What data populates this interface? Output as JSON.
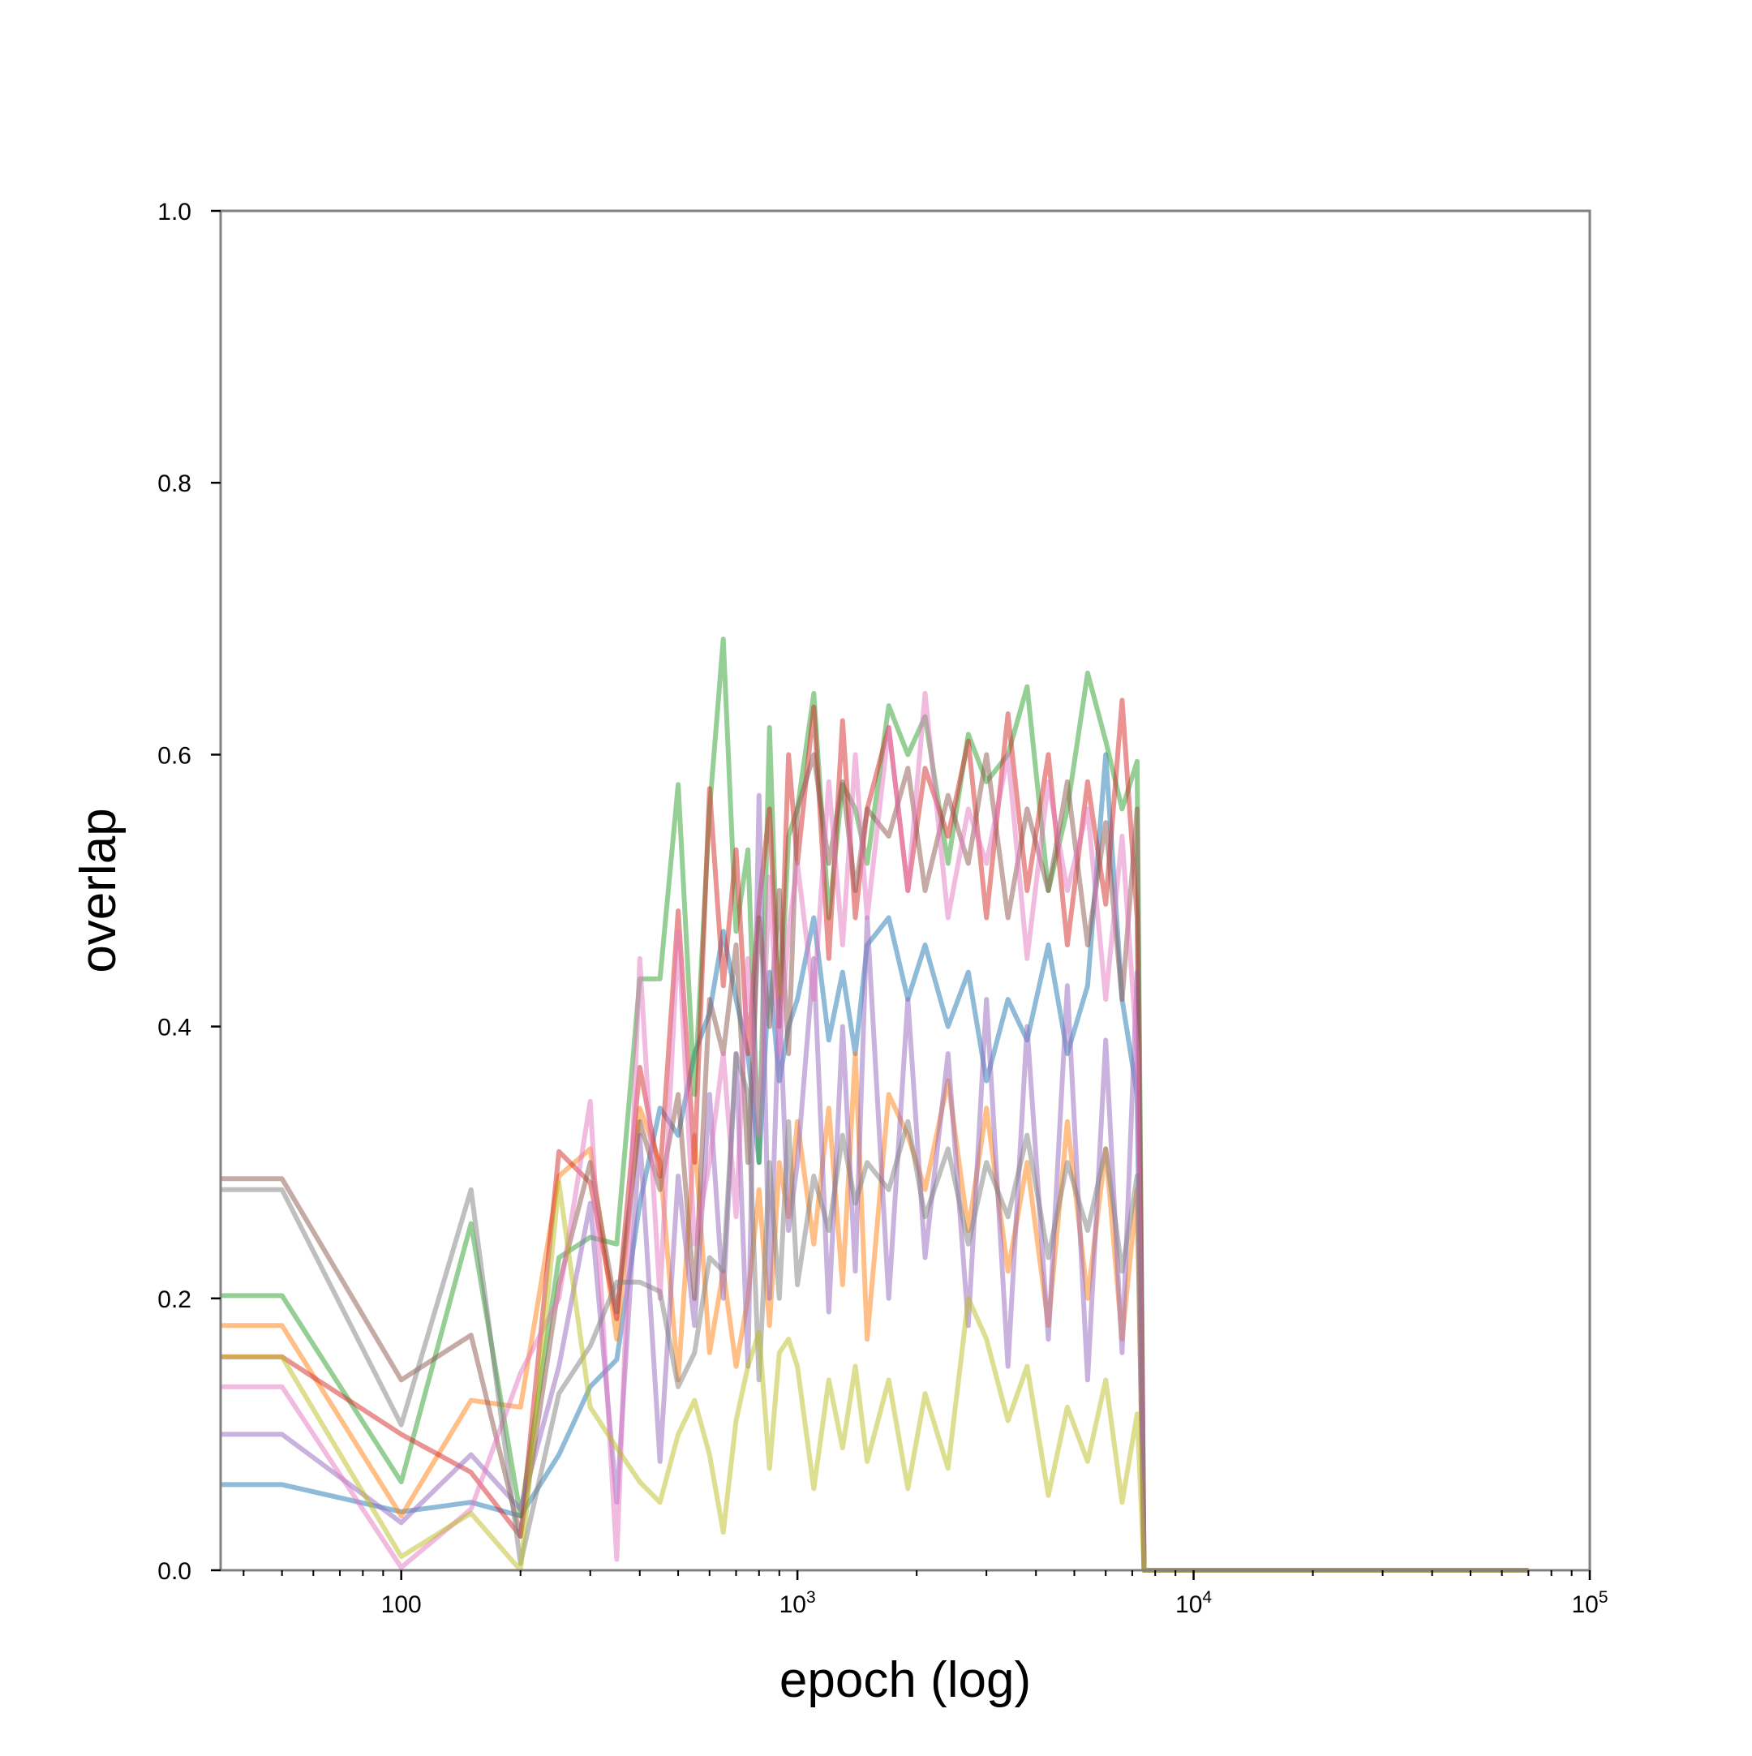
{
  "chart_data": {
    "type": "line",
    "title": "",
    "xlabel": "epoch (log)",
    "ylabel": "overlap",
    "xscale": "log",
    "xlim": [
      35,
      100000
    ],
    "ylim": [
      0,
      1.0
    ],
    "grid": false,
    "legend": "none",
    "x_ticks": [
      {
        "value": 100,
        "base": "100",
        "exp": ""
      },
      {
        "value": 1000,
        "base": "10",
        "exp": "3"
      },
      {
        "value": 10000,
        "base": "10",
        "exp": "4"
      },
      {
        "value": 100000,
        "base": "10",
        "exp": "5"
      }
    ],
    "y_ticks": [
      {
        "value": 0.0,
        "label": "0.0"
      },
      {
        "value": 0.2,
        "label": "0.2"
      },
      {
        "value": 0.4,
        "label": "0.4"
      },
      {
        "value": 0.6,
        "label": "0.6"
      },
      {
        "value": 0.8,
        "label": "0.8"
      },
      {
        "value": 1.0,
        "label": "1.0"
      }
    ],
    "series": [
      {
        "color": "#1f77b4",
        "x": [
          35,
          50,
          100,
          150,
          200,
          250,
          300,
          350,
          400,
          450,
          500,
          550,
          600,
          650,
          700,
          750,
          800,
          850,
          900,
          950,
          1000,
          1100,
          1200,
          1300,
          1400,
          1500,
          1700,
          1900,
          2100,
          2400,
          2700,
          3000,
          3400,
          3800,
          4300,
          4800,
          5400,
          6000,
          6600,
          7200,
          7500,
          8000,
          10000,
          20000,
          50000,
          70000
        ],
        "values": [
          0.063,
          0.063,
          0.043,
          0.05,
          0.04,
          0.085,
          0.135,
          0.155,
          0.27,
          0.34,
          0.32,
          0.38,
          0.41,
          0.47,
          0.42,
          0.38,
          0.3,
          0.44,
          0.36,
          0.4,
          0.42,
          0.48,
          0.39,
          0.44,
          0.38,
          0.46,
          0.48,
          0.42,
          0.46,
          0.4,
          0.44,
          0.36,
          0.42,
          0.39,
          0.46,
          0.38,
          0.43,
          0.6,
          0.42,
          0.35,
          0.0,
          0.0,
          0.0,
          0.0,
          0.0,
          0.0
        ]
      },
      {
        "color": "#ff7f0e",
        "x": [
          35,
          50,
          100,
          150,
          200,
          250,
          300,
          350,
          400,
          450,
          500,
          550,
          600,
          650,
          700,
          750,
          800,
          850,
          900,
          950,
          1000,
          1100,
          1200,
          1300,
          1400,
          1500,
          1700,
          1900,
          2100,
          2400,
          2700,
          3000,
          3400,
          3800,
          4300,
          4800,
          5400,
          6000,
          6600,
          7200,
          7500,
          8000,
          10000,
          20000,
          50000,
          70000
        ],
        "values": [
          0.18,
          0.18,
          0.04,
          0.125,
          0.12,
          0.29,
          0.31,
          0.17,
          0.34,
          0.3,
          0.14,
          0.32,
          0.16,
          0.22,
          0.15,
          0.2,
          0.28,
          0.18,
          0.3,
          0.26,
          0.33,
          0.24,
          0.34,
          0.21,
          0.38,
          0.17,
          0.35,
          0.32,
          0.28,
          0.36,
          0.25,
          0.34,
          0.22,
          0.3,
          0.18,
          0.33,
          0.2,
          0.31,
          0.17,
          0.28,
          0.0,
          0.0,
          0.0,
          0.0,
          0.0,
          0.0
        ]
      },
      {
        "color": "#2ca02c",
        "x": [
          35,
          50,
          100,
          150,
          200,
          250,
          300,
          350,
          400,
          450,
          500,
          550,
          600,
          650,
          700,
          750,
          800,
          850,
          900,
          950,
          1000,
          1100,
          1200,
          1300,
          1400,
          1500,
          1700,
          1900,
          2100,
          2400,
          2700,
          3000,
          3400,
          3800,
          4300,
          4800,
          5400,
          6000,
          6600,
          7200,
          7500,
          8000,
          10000,
          20000,
          50000,
          70000
        ],
        "values": [
          0.202,
          0.202,
          0.065,
          0.255,
          0.04,
          0.23,
          0.245,
          0.24,
          0.435,
          0.435,
          0.578,
          0.35,
          0.56,
          0.685,
          0.47,
          0.53,
          0.3,
          0.62,
          0.4,
          0.54,
          0.56,
          0.645,
          0.48,
          0.578,
          0.56,
          0.52,
          0.636,
          0.6,
          0.628,
          0.52,
          0.615,
          0.58,
          0.6,
          0.65,
          0.5,
          0.56,
          0.66,
          0.61,
          0.56,
          0.595,
          0.0,
          0.0,
          0.0,
          0.0,
          0.0,
          0.0
        ]
      },
      {
        "color": "#d62728",
        "x": [
          35,
          50,
          100,
          150,
          200,
          250,
          300,
          350,
          400,
          450,
          500,
          550,
          600,
          650,
          700,
          750,
          800,
          850,
          900,
          950,
          1000,
          1100,
          1200,
          1300,
          1400,
          1500,
          1700,
          1900,
          2100,
          2400,
          2700,
          3000,
          3400,
          3800,
          4300,
          4800,
          5400,
          6000,
          6600,
          7200,
          7500,
          8000,
          10000,
          20000,
          50000,
          70000
        ],
        "values": [
          0.157,
          0.157,
          0.1,
          0.072,
          0.025,
          0.308,
          0.285,
          0.185,
          0.37,
          0.29,
          0.485,
          0.3,
          0.575,
          0.43,
          0.53,
          0.38,
          0.49,
          0.56,
          0.4,
          0.6,
          0.52,
          0.635,
          0.45,
          0.625,
          0.48,
          0.56,
          0.62,
          0.5,
          0.59,
          0.54,
          0.61,
          0.48,
          0.63,
          0.5,
          0.6,
          0.46,
          0.58,
          0.49,
          0.64,
          0.48,
          0.0,
          0.0,
          0.0,
          0.0,
          0.0,
          0.0
        ]
      },
      {
        "color": "#9467bd",
        "x": [
          35,
          50,
          100,
          150,
          200,
          250,
          300,
          350,
          400,
          450,
          500,
          550,
          600,
          650,
          700,
          750,
          800,
          850,
          900,
          950,
          1000,
          1100,
          1200,
          1300,
          1400,
          1500,
          1700,
          1900,
          2100,
          2400,
          2700,
          3000,
          3400,
          3800,
          4300,
          4800,
          5400,
          6000,
          6600,
          7200,
          7500,
          8000,
          10000,
          20000,
          50000,
          70000
        ],
        "values": [
          0.1,
          0.1,
          0.035,
          0.085,
          0.045,
          0.15,
          0.27,
          0.05,
          0.32,
          0.08,
          0.29,
          0.18,
          0.35,
          0.2,
          0.38,
          0.15,
          0.57,
          0.2,
          0.42,
          0.25,
          0.3,
          0.45,
          0.19,
          0.4,
          0.22,
          0.48,
          0.2,
          0.42,
          0.23,
          0.38,
          0.18,
          0.42,
          0.15,
          0.4,
          0.17,
          0.43,
          0.14,
          0.39,
          0.16,
          0.44,
          0.0,
          0.0,
          0.0,
          0.0,
          0.0,
          0.0
        ]
      },
      {
        "color": "#8c564b",
        "x": [
          35,
          50,
          100,
          150,
          200,
          250,
          300,
          350,
          400,
          450,
          500,
          550,
          600,
          650,
          700,
          750,
          800,
          850,
          900,
          950,
          1000,
          1100,
          1200,
          1300,
          1400,
          1500,
          1700,
          1900,
          2100,
          2400,
          2700,
          3000,
          3400,
          3800,
          4300,
          4800,
          5400,
          6000,
          6600,
          7200,
          7500,
          8000,
          10000,
          20000,
          50000,
          70000
        ],
        "values": [
          0.288,
          0.288,
          0.14,
          0.173,
          0.025,
          0.21,
          0.3,
          0.19,
          0.33,
          0.28,
          0.35,
          0.2,
          0.42,
          0.38,
          0.46,
          0.3,
          0.48,
          0.4,
          0.5,
          0.38,
          0.56,
          0.6,
          0.52,
          0.58,
          0.5,
          0.56,
          0.54,
          0.59,
          0.5,
          0.57,
          0.52,
          0.6,
          0.48,
          0.56,
          0.5,
          0.58,
          0.46,
          0.55,
          0.42,
          0.56,
          0.0,
          0.0,
          0.0,
          0.0,
          0.0,
          0.0
        ]
      },
      {
        "color": "#e377c2",
        "x": [
          35,
          50,
          100,
          150,
          200,
          250,
          300,
          350,
          400,
          450,
          500,
          550,
          600,
          650,
          700,
          750,
          800,
          850,
          900,
          950,
          1000,
          1100,
          1200,
          1300,
          1400,
          1500,
          1700,
          1900,
          2100,
          2400,
          2700,
          3000,
          3400,
          3800,
          4300,
          4800,
          5400,
          6000,
          6600,
          7200,
          7500,
          8000,
          10000,
          20000,
          50000,
          70000
        ],
        "values": [
          0.135,
          0.135,
          0.002,
          0.045,
          0.145,
          0.2,
          0.345,
          0.008,
          0.45,
          0.2,
          0.47,
          0.24,
          0.3,
          0.38,
          0.26,
          0.45,
          0.32,
          0.51,
          0.38,
          0.47,
          0.52,
          0.42,
          0.58,
          0.46,
          0.6,
          0.48,
          0.62,
          0.5,
          0.645,
          0.48,
          0.56,
          0.52,
          0.6,
          0.45,
          0.58,
          0.5,
          0.56,
          0.42,
          0.54,
          0.38,
          0.0,
          0.0,
          0.0,
          0.0,
          0.0,
          0.0
        ]
      },
      {
        "color": "#7f7f7f",
        "x": [
          35,
          50,
          100,
          150,
          200,
          250,
          300,
          350,
          400,
          450,
          500,
          550,
          600,
          650,
          700,
          750,
          800,
          850,
          900,
          950,
          1000,
          1100,
          1200,
          1300,
          1400,
          1500,
          1700,
          1900,
          2100,
          2400,
          2700,
          3000,
          3400,
          3800,
          4300,
          4800,
          5400,
          6000,
          6600,
          7200,
          7500,
          8000,
          10000,
          20000,
          50000,
          70000
        ],
        "values": [
          0.28,
          0.28,
          0.107,
          0.28,
          0.005,
          0.13,
          0.165,
          0.212,
          0.212,
          0.205,
          0.135,
          0.16,
          0.23,
          0.22,
          0.38,
          0.35,
          0.14,
          0.3,
          0.2,
          0.33,
          0.21,
          0.29,
          0.25,
          0.32,
          0.27,
          0.3,
          0.28,
          0.33,
          0.26,
          0.31,
          0.24,
          0.3,
          0.26,
          0.32,
          0.23,
          0.3,
          0.25,
          0.31,
          0.22,
          0.29,
          0.0,
          0.0,
          0.0,
          0.0,
          0.0,
          0.0
        ]
      },
      {
        "color": "#bcbd22",
        "x": [
          35,
          50,
          100,
          150,
          200,
          250,
          300,
          350,
          400,
          450,
          500,
          550,
          600,
          650,
          700,
          750,
          800,
          850,
          900,
          950,
          1000,
          1100,
          1200,
          1300,
          1400,
          1500,
          1700,
          1900,
          2100,
          2400,
          2700,
          3000,
          3400,
          3800,
          4300,
          4800,
          5400,
          6000,
          6600,
          7200,
          7500,
          8000,
          10000,
          20000,
          50000,
          70000
        ],
        "values": [
          0.157,
          0.157,
          0.01,
          0.042,
          0.0,
          0.285,
          0.12,
          0.09,
          0.065,
          0.05,
          0.1,
          0.125,
          0.085,
          0.028,
          0.11,
          0.15,
          0.175,
          0.075,
          0.16,
          0.17,
          0.15,
          0.06,
          0.14,
          0.09,
          0.15,
          0.08,
          0.14,
          0.06,
          0.13,
          0.075,
          0.2,
          0.17,
          0.11,
          0.15,
          0.055,
          0.12,
          0.08,
          0.14,
          0.05,
          0.115,
          0.0,
          0.0,
          0.0,
          0.0,
          0.0,
          0.0
        ]
      }
    ]
  }
}
